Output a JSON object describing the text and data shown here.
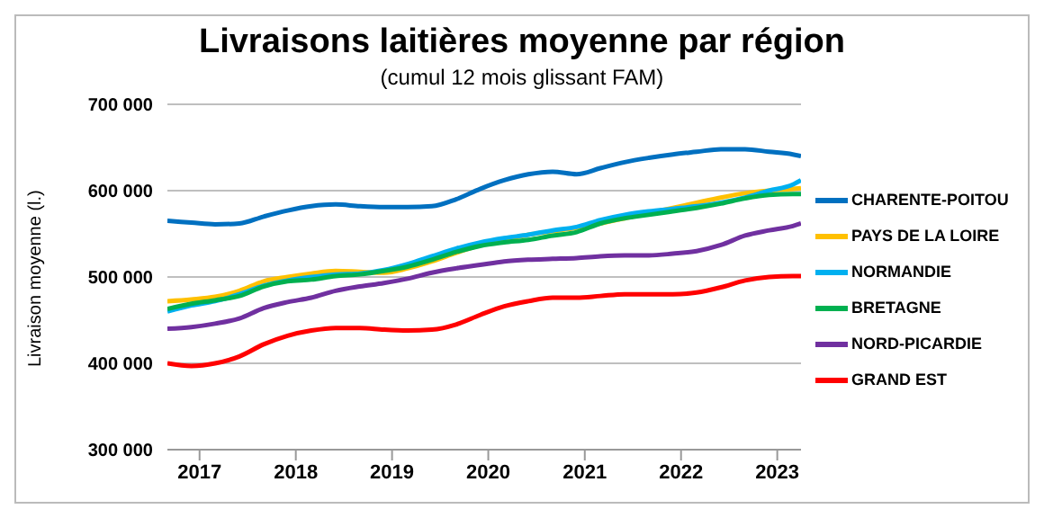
{
  "chart_data": {
    "type": "line",
    "title": "Livraisons laitières moyenne par région",
    "subtitle": "(cumul 12 mois glissant FAM)",
    "ylabel": "Livraison moyenne (l.)",
    "x": [
      "2016-09",
      "2016-12",
      "2017-03",
      "2017-06",
      "2017-09",
      "2017-12",
      "2018-03",
      "2018-06",
      "2018-09",
      "2018-12",
      "2019-03",
      "2019-06",
      "2019-09",
      "2019-12",
      "2020-03",
      "2020-06",
      "2020-09",
      "2020-12",
      "2021-03",
      "2021-06",
      "2021-09",
      "2021-12",
      "2022-03",
      "2022-06",
      "2022-09",
      "2022-12",
      "2023-03",
      "2023-04"
    ],
    "series": [
      {
        "name": "CHARENTE-POITOU",
        "color": "#0070c0",
        "values": [
          565000,
          563000,
          561000,
          562000,
          570000,
          577000,
          582000,
          584000,
          582000,
          581000,
          581000,
          582000,
          590000,
          602000,
          612000,
          619000,
          622000,
          619000,
          626000,
          633000,
          638000,
          642000,
          645000,
          648000,
          648000,
          645000,
          642000,
          640000
        ]
      },
      {
        "name": "PAYS DE LA LOIRE",
        "color": "#ffc000",
        "values": [
          472000,
          474000,
          477000,
          484000,
          495000,
          500000,
          504000,
          507000,
          506000,
          505000,
          510000,
          518000,
          528000,
          537000,
          543000,
          549000,
          553000,
          557000,
          562000,
          568000,
          574000,
          580000,
          586000,
          592000,
          597000,
          600000,
          602000,
          603000
        ]
      },
      {
        "name": "NORMANDIE",
        "color": "#00b0f0",
        "values": [
          460000,
          467000,
          472000,
          480000,
          490000,
          496000,
          500000,
          503000,
          504000,
          508000,
          515000,
          524000,
          533000,
          540000,
          545000,
          549000,
          554000,
          558000,
          566000,
          572000,
          576000,
          579000,
          582000,
          586000,
          592000,
          600000,
          607000,
          612000
        ]
      },
      {
        "name": "BRETAGNE",
        "color": "#00b050",
        "values": [
          463000,
          469000,
          473000,
          478000,
          489000,
          495000,
          497000,
          501000,
          503000,
          507000,
          512000,
          520000,
          529000,
          536000,
          540000,
          543000,
          548000,
          552000,
          562000,
          568000,
          572000,
          576000,
          580000,
          585000,
          591000,
          595000,
          596000,
          596000
        ]
      },
      {
        "name": "NORD-PICARDIE",
        "color": "#7030a0",
        "values": [
          440000,
          442000,
          446000,
          452000,
          464000,
          471000,
          476000,
          484000,
          489000,
          493000,
          498000,
          505000,
          510000,
          514000,
          518000,
          520000,
          521000,
          522000,
          524000,
          525000,
          525000,
          527000,
          530000,
          537000,
          548000,
          554000,
          559000,
          562000
        ]
      },
      {
        "name": "GRAND EST",
        "color": "#ff0000",
        "values": [
          400000,
          397000,
          400000,
          408000,
          422000,
          432000,
          438000,
          441000,
          441000,
          439000,
          438000,
          439000,
          445000,
          456000,
          466000,
          472000,
          476000,
          476000,
          478000,
          480000,
          480000,
          480000,
          482000,
          488000,
          496000,
          500000,
          501000,
          501000
        ]
      }
    ],
    "xlim": [
      "2016-09",
      "2023-04"
    ],
    "xticks": [
      {
        "value": "2017-01",
        "label": "2017"
      },
      {
        "value": "2018-01",
        "label": "2018"
      },
      {
        "value": "2019-01",
        "label": "2019"
      },
      {
        "value": "2020-01",
        "label": "2020"
      },
      {
        "value": "2021-01",
        "label": "2021"
      },
      {
        "value": "2022-01",
        "label": "2022"
      },
      {
        "value": "2023-01",
        "label": "2023"
      }
    ],
    "ylim": [
      300000,
      700000
    ],
    "yticks": [
      {
        "value": 300000,
        "label": "300 000"
      },
      {
        "value": 400000,
        "label": "400 000"
      },
      {
        "value": 500000,
        "label": "500 000"
      },
      {
        "value": 600000,
        "label": "600 000"
      },
      {
        "value": 700000,
        "label": "700 000"
      }
    ],
    "grid": "y",
    "legend": "right",
    "marker": "none",
    "line_style": "solid"
  }
}
